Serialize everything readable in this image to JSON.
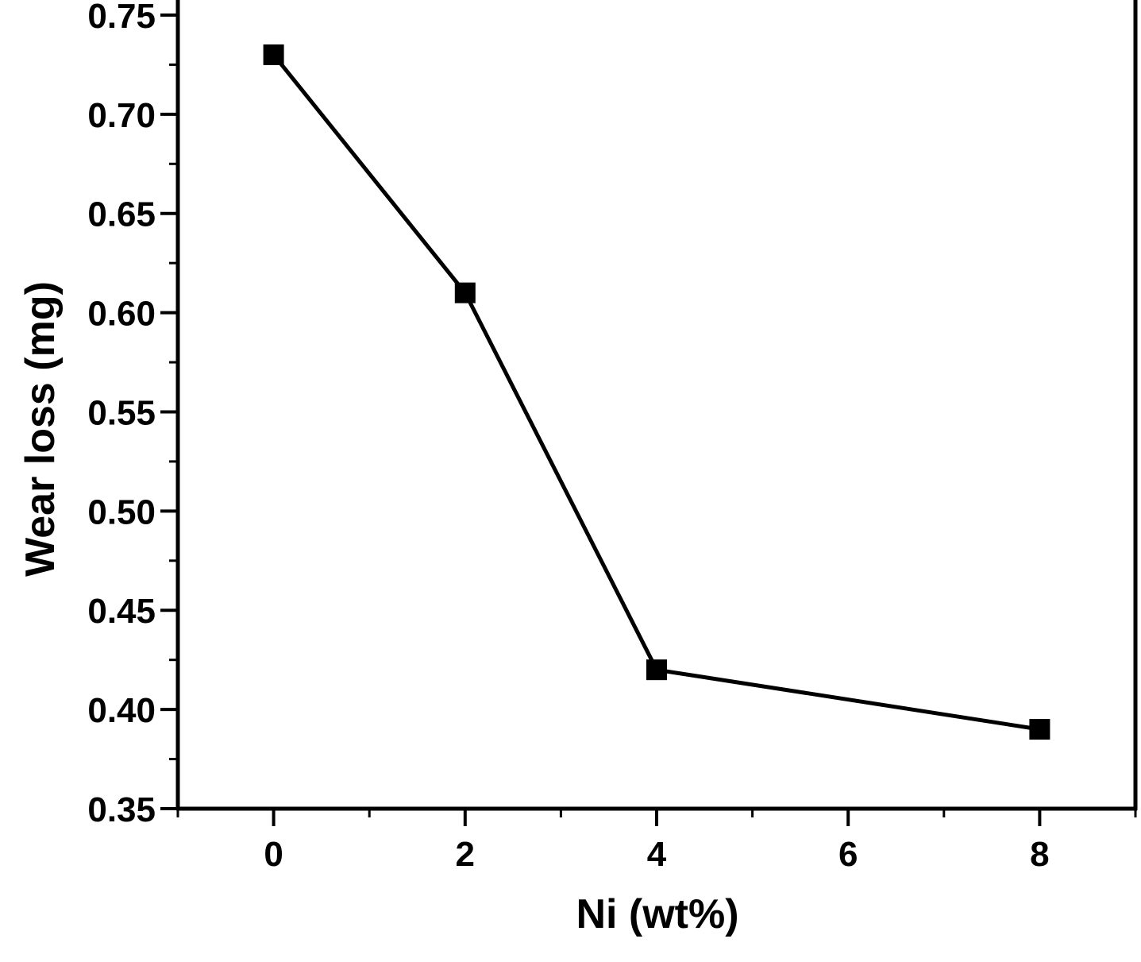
{
  "chart_data": {
    "type": "line",
    "xlabel": "Ni (wt%)",
    "ylabel": "Wear loss (mg)",
    "xlim": [
      -1,
      9
    ],
    "ylim": [
      0.35,
      0.76
    ],
    "x_ticks": [
      0,
      2,
      4,
      6,
      8
    ],
    "x_tick_labels": [
      "0",
      "2",
      "4",
      "6",
      "8"
    ],
    "x_minor_ticks": [
      -1,
      1,
      3,
      5,
      7,
      9
    ],
    "y_ticks": [
      0.35,
      0.4,
      0.45,
      0.5,
      0.55,
      0.6,
      0.65,
      0.7,
      0.75
    ],
    "y_tick_labels": [
      "0.35",
      "0.40",
      "0.45",
      "0.50",
      "0.55",
      "0.60",
      "0.65",
      "0.70",
      "0.75"
    ],
    "y_minor_ticks": [
      0.375,
      0.425,
      0.475,
      0.525,
      0.575,
      0.625,
      0.675,
      0.725
    ],
    "grid": false,
    "marker": "square",
    "color": "#000000",
    "series": [
      {
        "x": [
          0,
          2,
          4,
          8
        ],
        "y": [
          0.73,
          0.61,
          0.42,
          0.39
        ]
      }
    ]
  }
}
